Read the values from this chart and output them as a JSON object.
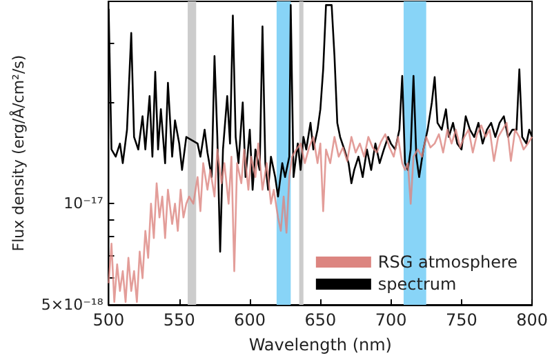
{
  "chart_data": {
    "type": "line",
    "xlabel": "Wavelength (nm)",
    "ylabel": "Flux density (erg/Å/cm²/s)",
    "xlim": [
      500,
      800
    ],
    "xticks": [
      500,
      550,
      600,
      650,
      700,
      750,
      800
    ],
    "ylim": [
      5e-18,
      4e-17
    ],
    "yticks": [
      {
        "value": 5e-18,
        "label": "5×10⁻¹⁸"
      },
      {
        "value": 6e-18,
        "label": null
      },
      {
        "value": 7e-18,
        "label": null
      },
      {
        "value": 8e-18,
        "label": null
      },
      {
        "value": 9e-18,
        "label": null
      },
      {
        "value": 1e-17,
        "label": "10⁻¹⁷"
      },
      {
        "value": 2e-17,
        "label": null
      },
      {
        "value": 3e-17,
        "label": null
      }
    ],
    "log": "y",
    "grid": false,
    "legend": "bottom right",
    "marker": "none",
    "line_style": "solid",
    "bands": [
      {
        "axis": "x",
        "from": 619,
        "to": 629,
        "color": "#88d4f7"
      },
      {
        "axis": "x",
        "from": 709,
        "to": 725,
        "color": "#88d4f7"
      },
      {
        "axis": "x",
        "from": 556,
        "to": 562,
        "color": "#cccccc"
      },
      {
        "axis": "x",
        "from": 635,
        "to": 638,
        "color": "#cccccc"
      }
    ],
    "series": [
      {
        "name": "RSG atmosphere",
        "color": "#dc8580",
        "x": [
          500,
          502,
          504,
          506,
          508,
          510,
          512,
          514,
          516,
          518,
          520,
          522,
          524,
          526,
          528,
          530,
          532,
          534,
          536,
          538,
          540,
          542,
          545,
          547,
          549,
          551,
          553,
          555,
          557,
          560,
          563,
          565,
          567,
          570,
          572,
          575,
          577,
          580,
          582,
          585,
          587,
          589,
          591,
          594,
          596,
          599,
          601,
          604,
          606,
          609,
          612,
          615,
          617,
          620,
          622,
          624,
          626,
          628,
          630,
          633,
          636,
          639,
          642,
          645,
          648,
          650,
          652,
          654,
          657,
          660,
          663,
          666,
          669,
          672,
          675,
          678,
          681,
          684,
          687,
          690,
          693,
          696,
          699,
          702,
          705,
          708,
          710,
          712,
          714,
          716,
          719,
          722,
          725,
          728,
          731,
          734,
          737,
          740,
          743,
          746,
          749,
          752,
          755,
          758,
          761,
          764,
          767,
          770,
          773,
          776,
          779,
          782,
          785,
          788,
          791,
          794,
          797,
          800
        ],
        "values": [
          5.8e-18,
          7.6e-18,
          5.1e-18,
          6.6e-18,
          5.5e-18,
          6.3e-18,
          5.1e-18,
          6.9e-18,
          5.5e-18,
          6.3e-18,
          5.1e-18,
          7.2e-18,
          6e-18,
          8.3e-18,
          6.9e-18,
          1e-17,
          7.9e-18,
          1.15e-17,
          9.1e-18,
          1.05e-17,
          7.9e-18,
          1.1e-17,
          8.7e-18,
          1e-17,
          8.3e-18,
          1.1e-17,
          9.1e-18,
          1e-17,
          1.05e-17,
          1e-17,
          1.2e-17,
          9.5e-18,
          1.32e-17,
          1.1e-17,
          1.26e-17,
          1.05e-17,
          1.45e-17,
          1.15e-17,
          1.32e-17,
          1e-17,
          1.38e-17,
          6.3e-18,
          1.32e-17,
          1.15e-17,
          1.45e-17,
          1.1e-17,
          1.38e-17,
          1.2e-17,
          1.51e-17,
          1.1e-17,
          1.32e-17,
          1e-17,
          1.1e-17,
          9.1e-18,
          8.3e-18,
          1.05e-17,
          8.2e-18,
          1.2e-17,
          1.38e-17,
          1.45e-17,
          1.51e-17,
          1.32e-17,
          1.47e-17,
          1.58e-17,
          1.32e-17,
          1.51e-17,
          9.5e-18,
          1.45e-17,
          1.32e-17,
          1.58e-17,
          1.38e-17,
          1.47e-17,
          1.34e-17,
          1.58e-17,
          1.42e-17,
          1.51e-17,
          1.38e-17,
          1.58e-17,
          1.47e-17,
          1.42e-17,
          1.53e-17,
          1.61e-17,
          1.47e-17,
          1.38e-17,
          1.58e-17,
          1.32e-17,
          1.26e-17,
          1.32e-17,
          1e-17,
          1.38e-17,
          1.45e-17,
          1.38e-17,
          1.58e-17,
          1.47e-17,
          1.51e-17,
          1.61e-17,
          1.42e-17,
          1.66e-17,
          1.51e-17,
          1.66e-17,
          1.47e-17,
          1.58e-17,
          1.66e-17,
          1.42e-17,
          1.61e-17,
          1.71e-17,
          1.58e-17,
          1.66e-17,
          1.34e-17,
          1.58e-17,
          1.66e-17,
          1.74e-17,
          1.34e-17,
          1.66e-17,
          1.58e-17,
          1.45e-17,
          1.51e-17,
          1.58e-17
        ]
      },
      {
        "name": "spectrum",
        "color": "#000000",
        "x": [
          500,
          502,
          505,
          508,
          510,
          513,
          516,
          518,
          521,
          524,
          526,
          529,
          531,
          533,
          535,
          537,
          540,
          542,
          545,
          547,
          550,
          552,
          555,
          563,
          565,
          568,
          570,
          573,
          575,
          577,
          579,
          581,
          584,
          586,
          588,
          590,
          592,
          595,
          597,
          600,
          602,
          604,
          607,
          609,
          611,
          613,
          615,
          618,
          620,
          623,
          625,
          628,
          629,
          631,
          634,
          636,
          638,
          640,
          643,
          645,
          648,
          650,
          652,
          654,
          658,
          660,
          662,
          664,
          667,
          670,
          672,
          674,
          677,
          680,
          683,
          686,
          689,
          692,
          695,
          698,
          700,
          703,
          706,
          708,
          710,
          712,
          714,
          716,
          718,
          720,
          723,
          726,
          729,
          731,
          733,
          736,
          739,
          741,
          744,
          747,
          750,
          753,
          756,
          759,
          762,
          765,
          768,
          771,
          774,
          777,
          780,
          783,
          786,
          789,
          791,
          793,
          796,
          798,
          800
        ],
        "values": [
          3.8e-17,
          1.45e-17,
          1.38e-17,
          1.51e-17,
          1.32e-17,
          1.66e-17,
          3.22e-17,
          1.58e-17,
          1.45e-17,
          1.82e-17,
          1.45e-17,
          2.09e-17,
          1.38e-17,
          2.47e-17,
          1.45e-17,
          1.91e-17,
          1.32e-17,
          2.29e-17,
          1.38e-17,
          1.77e-17,
          1.51e-17,
          1.26e-17,
          1.58e-17,
          1.51e-17,
          1.38e-17,
          1.66e-17,
          1.42e-17,
          1.2e-17,
          2.75e-17,
          1.58e-17,
          7.2e-18,
          1.45e-17,
          2.09e-17,
          1.51e-17,
          3.63e-17,
          1.58e-17,
          1.32e-17,
          2e-17,
          1.2e-17,
          1.66e-17,
          1.1e-17,
          1.45e-17,
          1.26e-17,
          3.37e-17,
          1.32e-17,
          1.1e-17,
          1.38e-17,
          1.2e-17,
          1.05e-17,
          1.32e-17,
          1.2e-17,
          1.38e-17,
          3.9e-17,
          1.2e-17,
          1.51e-17,
          1.26e-17,
          1.58e-17,
          1.45e-17,
          1.74e-17,
          1.45e-17,
          1.66e-17,
          1.91e-17,
          2.51e-17,
          3.9e-17,
          3.9e-17,
          2.75e-17,
          1.74e-17,
          1.58e-17,
          1.45e-17,
          1.32e-17,
          1.15e-17,
          1.26e-17,
          1.38e-17,
          1.2e-17,
          1.45e-17,
          1.26e-17,
          1.51e-17,
          1.32e-17,
          1.45e-17,
          1.58e-17,
          1.51e-17,
          1.45e-17,
          1.66e-17,
          2.4e-17,
          1.32e-17,
          1.26e-17,
          1.45e-17,
          2.4e-17,
          1.38e-17,
          1.2e-17,
          1.45e-17,
          1.66e-17,
          2e-17,
          2.38e-17,
          1.74e-17,
          1.66e-17,
          1.91e-17,
          1.58e-17,
          1.74e-17,
          1.51e-17,
          1.45e-17,
          1.82e-17,
          1.66e-17,
          1.58e-17,
          1.74e-17,
          1.51e-17,
          1.66e-17,
          1.74e-17,
          1.58e-17,
          1.74e-17,
          1.82e-17,
          1.58e-17,
          1.66e-17,
          1.66e-17,
          2.51e-17,
          1.58e-17,
          1.51e-17,
          1.66e-17,
          1.58e-17
        ]
      }
    ]
  }
}
